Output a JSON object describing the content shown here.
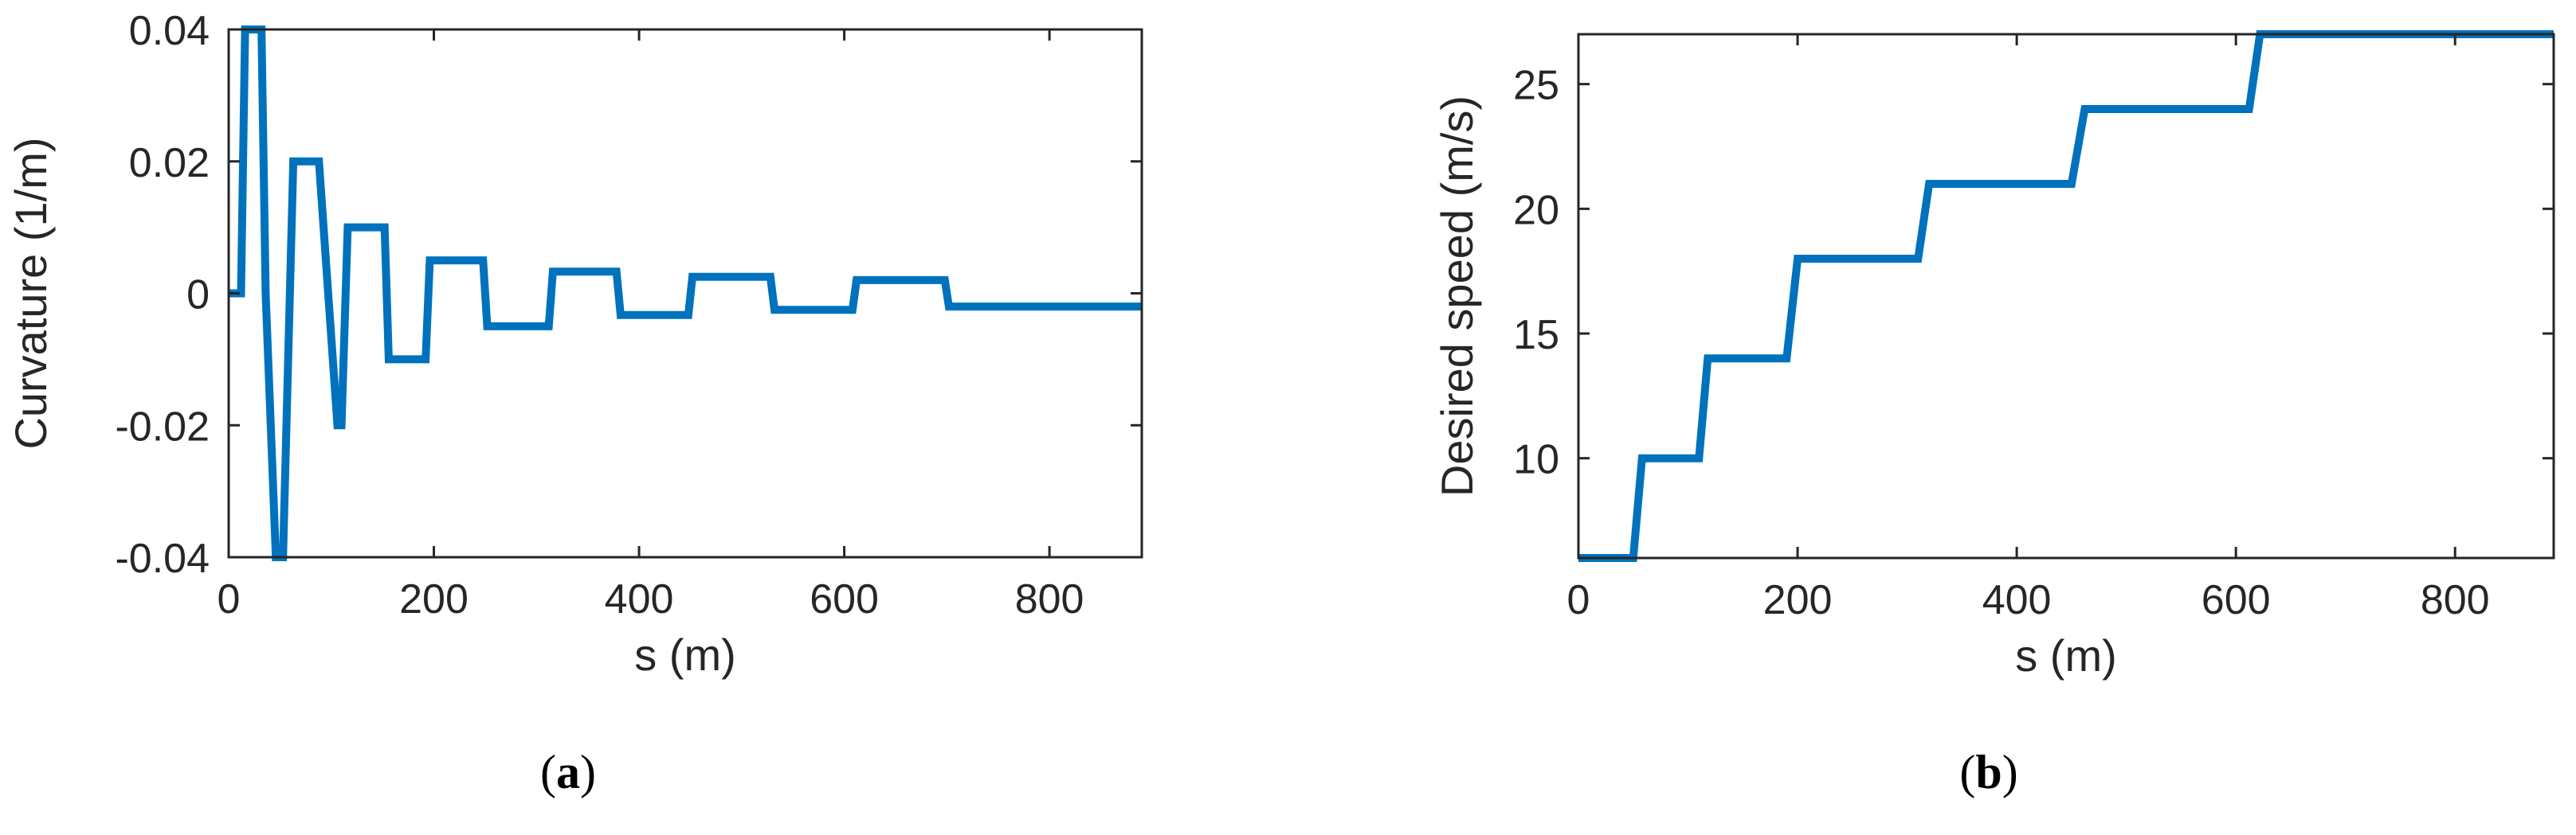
{
  "colors": {
    "series": "#0072bd",
    "axes": "#262626"
  },
  "panels": {
    "a": {
      "open": "(",
      "letter": "a",
      "close": ")"
    },
    "b": {
      "open": "(",
      "letter": "b",
      "close": ")"
    }
  },
  "chart_data": [
    {
      "type": "line",
      "panel": "(a)",
      "xlabel": "s (m)",
      "ylabel": "Curvature (1/m)",
      "xlim": [
        0,
        890
      ],
      "ylim": [
        -0.04,
        0.04
      ],
      "xticks": [
        0,
        200,
        400,
        600,
        800
      ],
      "xtick_labels": [
        "0",
        "200",
        "400",
        "600",
        "800"
      ],
      "yticks": [
        -0.04,
        -0.02,
        0,
        0.02,
        0.04
      ],
      "ytick_labels": [
        "-0.04",
        "-0.02",
        "0",
        "0.02",
        "0.04"
      ],
      "grid": false,
      "legend": "none",
      "series": [
        {
          "x": [
            0,
            12,
            16,
            32,
            36,
            46,
            53,
            63,
            68,
            84,
            88,
            106,
            110,
            116,
            120,
            152,
            156,
            188,
            192,
            196,
            200,
            248,
            252,
            308,
            312,
            316,
            320,
            378,
            382,
            448,
            452,
            528,
            532,
            608,
            612,
            698,
            702,
            890
          ],
          "y": [
            0,
            0,
            0.04,
            0.04,
            0,
            -0.04,
            -0.04,
            0.02,
            0.02,
            0.02,
            0.02,
            -0.02,
            -0.02,
            0.01,
            0.01,
            0.01,
            -0.01,
            -0.01,
            -0.01,
            0.005,
            0.005,
            0.005,
            -0.005,
            -0.005,
            -0.005,
            0.0033,
            0.0033,
            0.0033,
            -0.0033,
            -0.0033,
            0.0025,
            0.0025,
            -0.0025,
            -0.0025,
            0.002,
            0.002,
            -0.002,
            -0.002
          ]
        }
      ]
    },
    {
      "type": "line",
      "panel": "(b)",
      "xlabel": "s (m)",
      "ylabel": "Desired speed (m/s)",
      "xlim": [
        0,
        890
      ],
      "ylim": [
        6,
        27
      ],
      "xticks": [
        0,
        200,
        400,
        600,
        800
      ],
      "xtick_labels": [
        "0",
        "200",
        "400",
        "600",
        "800"
      ],
      "yticks": [
        10,
        15,
        20,
        25
      ],
      "ytick_labels": [
        "10",
        "15",
        "20",
        "25"
      ],
      "grid": false,
      "legend": "none",
      "series": [
        {
          "x": [
            0,
            50,
            58,
            110,
            118,
            190,
            200,
            310,
            320,
            450,
            462,
            612,
            622,
            890
          ],
          "y": [
            6,
            6,
            10,
            10,
            14,
            14,
            18,
            18,
            21,
            21,
            24,
            24,
            27,
            27
          ]
        }
      ]
    }
  ]
}
